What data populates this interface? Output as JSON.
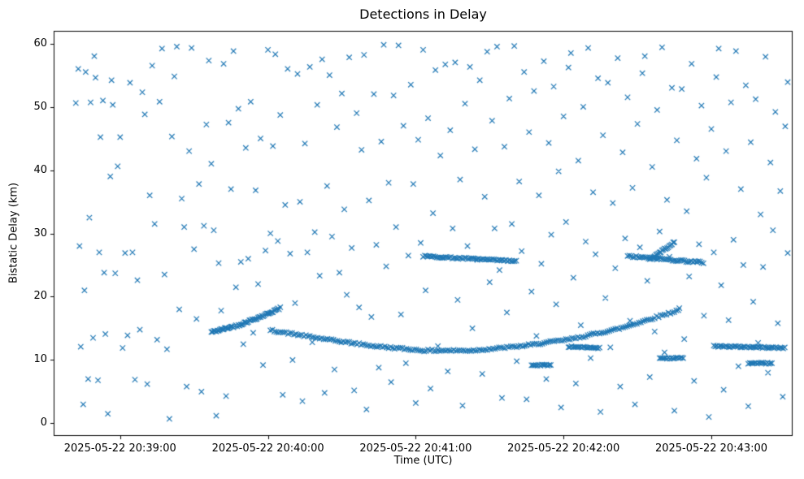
{
  "chart_data": {
    "type": "scatter",
    "title": "Detections in Delay",
    "xlabel": "Time (UTC)",
    "ylabel": "Bistatic Delay (km)",
    "marker": "x",
    "marker_color": "#1f77b4",
    "grid": false,
    "legend": null,
    "x_domain_seconds": [
      0,
      300
    ],
    "x_origin_label": "2025-05-22 20:38:33",
    "ylim": [
      -2,
      62
    ],
    "yticks": [
      0,
      10,
      20,
      30,
      40,
      50,
      60
    ],
    "x_ticks": [
      {
        "s": 27,
        "label": "2025-05-22 20:39:00"
      },
      {
        "s": 87,
        "label": "2025-05-22 20:40:00"
      },
      {
        "s": 147,
        "label": "2025-05-22 20:41:00"
      },
      {
        "s": 207,
        "label": "2025-05-22 20:42:00"
      },
      {
        "s": 267,
        "label": "2025-05-22 20:43:00"
      }
    ],
    "jitter_seed": 42,
    "noise_points": [
      [
        9,
        50.6
      ],
      [
        10,
        56
      ],
      [
        10.5,
        28
      ],
      [
        11,
        12.1
      ],
      [
        12,
        3
      ],
      [
        12.5,
        21
      ],
      [
        13,
        55.5
      ],
      [
        14,
        7
      ],
      [
        14.5,
        32.5
      ],
      [
        15,
        50.7
      ],
      [
        16,
        13.5
      ],
      [
        16.5,
        58
      ],
      [
        17,
        54.6
      ],
      [
        18,
        6.8
      ],
      [
        18.5,
        27
      ],
      [
        19,
        45.2
      ],
      [
        20,
        51
      ],
      [
        20.5,
        23.8
      ],
      [
        21,
        14.1
      ],
      [
        22,
        1.5
      ],
      [
        23,
        39
      ],
      [
        23.5,
        54.2
      ],
      [
        24,
        50.3
      ],
      [
        25,
        23.7
      ],
      [
        26,
        40.6
      ],
      [
        27,
        45.2
      ],
      [
        28,
        11.9
      ],
      [
        29,
        26.9
      ],
      [
        30,
        13.9
      ],
      [
        31,
        53.8
      ],
      [
        32,
        27
      ],
      [
        33,
        6.9
      ],
      [
        34,
        22.6
      ],
      [
        35,
        14.8
      ],
      [
        36,
        52.3
      ],
      [
        37,
        48.8
      ],
      [
        38,
        6.2
      ],
      [
        39,
        36
      ],
      [
        40,
        56.5
      ],
      [
        41,
        31.5
      ],
      [
        42,
        13.2
      ],
      [
        43,
        50.8
      ],
      [
        44,
        59.2
      ],
      [
        45,
        23.5
      ],
      [
        46,
        11.7
      ],
      [
        47,
        0.7
      ],
      [
        48,
        45.3
      ],
      [
        49,
        54.8
      ],
      [
        50,
        59.5
      ],
      [
        51,
        18
      ],
      [
        52,
        35.5
      ],
      [
        53,
        31
      ],
      [
        54,
        5.8
      ],
      [
        55,
        43
      ],
      [
        56,
        59.3
      ],
      [
        57,
        27.5
      ],
      [
        58,
        16.5
      ],
      [
        59,
        37.8
      ],
      [
        60,
        5
      ],
      [
        61,
        31.2
      ],
      [
        62,
        47.2
      ],
      [
        63,
        57.3
      ],
      [
        64,
        41
      ],
      [
        65,
        30.5
      ],
      [
        66,
        1.2
      ],
      [
        67,
        25.3
      ],
      [
        68,
        17.8
      ],
      [
        69,
        56.8
      ],
      [
        70,
        4.3
      ],
      [
        71,
        47.5
      ],
      [
        72,
        37
      ],
      [
        73,
        58.8
      ],
      [
        74,
        21.5
      ],
      [
        75,
        49.7
      ],
      [
        76,
        25.5
      ],
      [
        77,
        12.5
      ],
      [
        78,
        43.5
      ],
      [
        79,
        26
      ],
      [
        80,
        50.8
      ],
      [
        81,
        14.3
      ],
      [
        82,
        36.8
      ],
      [
        83,
        22
      ],
      [
        84,
        45
      ],
      [
        85,
        9.2
      ],
      [
        86,
        27.3
      ],
      [
        87,
        59
      ],
      [
        88,
        30
      ],
      [
        89,
        43.8
      ],
      [
        90,
        58.3
      ],
      [
        91,
        28.8
      ],
      [
        92,
        48.7
      ],
      [
        93,
        4.5
      ],
      [
        94,
        34.5
      ],
      [
        95,
        56
      ],
      [
        96,
        26.8
      ],
      [
        97,
        10
      ],
      [
        98,
        19
      ],
      [
        99,
        55.2
      ],
      [
        100,
        35
      ],
      [
        101,
        3.5
      ],
      [
        102,
        44.2
      ],
      [
        103,
        27
      ],
      [
        104,
        56.3
      ],
      [
        105,
        12.8
      ],
      [
        106,
        30.2
      ],
      [
        107,
        50.3
      ],
      [
        108,
        23.3
      ],
      [
        109,
        57.5
      ],
      [
        110,
        4.8
      ],
      [
        111,
        37.5
      ],
      [
        112,
        55
      ],
      [
        113,
        29.5
      ],
      [
        114,
        8.5
      ],
      [
        115,
        46.8
      ],
      [
        116,
        23.8
      ],
      [
        117,
        52.1
      ],
      [
        118,
        33.8
      ],
      [
        119,
        20.3
      ],
      [
        120,
        57.8
      ],
      [
        121,
        27.7
      ],
      [
        122,
        5.2
      ],
      [
        123,
        49
      ],
      [
        124,
        18.3
      ],
      [
        125,
        43.2
      ],
      [
        126,
        58.2
      ],
      [
        127,
        2.2
      ],
      [
        128,
        35.2
      ],
      [
        129,
        16.8
      ],
      [
        130,
        52
      ],
      [
        131,
        28.2
      ],
      [
        132,
        8.8
      ],
      [
        133,
        44.5
      ],
      [
        134,
        59.8
      ],
      [
        135,
        24.8
      ],
      [
        136,
        38
      ],
      [
        137,
        6.5
      ],
      [
        138,
        51.8
      ],
      [
        139,
        31
      ],
      [
        140,
        59.7
      ],
      [
        141,
        17.2
      ],
      [
        142,
        47
      ],
      [
        143,
        9.5
      ],
      [
        144,
        26.5
      ],
      [
        145,
        53.5
      ],
      [
        146,
        37.8
      ],
      [
        147,
        3.2
      ],
      [
        148,
        44.8
      ],
      [
        149,
        28.5
      ],
      [
        150,
        59
      ],
      [
        151,
        21
      ],
      [
        152,
        48.2
      ],
      [
        153,
        5.5
      ],
      [
        154,
        33.2
      ],
      [
        155,
        55.8
      ],
      [
        156,
        12.2
      ],
      [
        157,
        42.3
      ],
      [
        158,
        26.2
      ],
      [
        159,
        56.7
      ],
      [
        160,
        8.2
      ],
      [
        161,
        46.3
      ],
      [
        162,
        30.8
      ],
      [
        163,
        57
      ],
      [
        164,
        19.5
      ],
      [
        165,
        38.5
      ],
      [
        166,
        2.8
      ],
      [
        167,
        50.5
      ],
      [
        168,
        28
      ],
      [
        169,
        56.3
      ],
      [
        170,
        15
      ],
      [
        171,
        43.3
      ],
      [
        172,
        25.8
      ],
      [
        173,
        54.2
      ],
      [
        174,
        7.8
      ],
      [
        175,
        35.8
      ],
      [
        176,
        58.7
      ],
      [
        177,
        22.3
      ],
      [
        178,
        47.8
      ],
      [
        179,
        30.8
      ],
      [
        180,
        59.5
      ],
      [
        181,
        24.2
      ],
      [
        182,
        4
      ],
      [
        183,
        43.7
      ],
      [
        184,
        17.5
      ],
      [
        185,
        51.3
      ],
      [
        186,
        31.5
      ],
      [
        187,
        59.6
      ],
      [
        188,
        9.8
      ],
      [
        189,
        38.2
      ],
      [
        190,
        27.2
      ],
      [
        191,
        55.5
      ],
      [
        192,
        3.8
      ],
      [
        193,
        46
      ],
      [
        194,
        20.8
      ],
      [
        195,
        52.5
      ],
      [
        196,
        13.8
      ],
      [
        197,
        36
      ],
      [
        198,
        25.2
      ],
      [
        199,
        57.2
      ],
      [
        200,
        7
      ],
      [
        201,
        44.3
      ],
      [
        202,
        29.8
      ],
      [
        203,
        53.2
      ],
      [
        204,
        18.8
      ],
      [
        205,
        39.8
      ],
      [
        206,
        2.5
      ],
      [
        207,
        48.5
      ],
      [
        208,
        31.8
      ],
      [
        209,
        56.2
      ],
      [
        210,
        58.5
      ],
      [
        211,
        23
      ],
      [
        212,
        6.3
      ],
      [
        213,
        41.5
      ],
      [
        214,
        15.5
      ],
      [
        215,
        50
      ],
      [
        216,
        28.7
      ],
      [
        217,
        59.3
      ],
      [
        218,
        10.3
      ],
      [
        219,
        36.5
      ],
      [
        220,
        26.7
      ],
      [
        221,
        54.5
      ],
      [
        222,
        1.8
      ],
      [
        223,
        45.5
      ],
      [
        224,
        19.8
      ],
      [
        225,
        53.8
      ],
      [
        226,
        12
      ],
      [
        227,
        34.8
      ],
      [
        228,
        24.5
      ],
      [
        229,
        57.7
      ],
      [
        230,
        5.8
      ],
      [
        231,
        42.8
      ],
      [
        232,
        29.2
      ],
      [
        233,
        51.5
      ],
      [
        234,
        16.2
      ],
      [
        235,
        37.2
      ],
      [
        236,
        3
      ],
      [
        237,
        47.3
      ],
      [
        238,
        27.8
      ],
      [
        239,
        55.3
      ],
      [
        240,
        58
      ],
      [
        241,
        22.5
      ],
      [
        242,
        7.3
      ],
      [
        243,
        40.5
      ],
      [
        244,
        14.5
      ],
      [
        245,
        49.5
      ],
      [
        246,
        30.3
      ],
      [
        247,
        59.4
      ],
      [
        248,
        11.2
      ],
      [
        249,
        35.3
      ],
      [
        250,
        26.3
      ],
      [
        251,
        53
      ],
      [
        252,
        2
      ],
      [
        253,
        44.7
      ],
      [
        254,
        18.2
      ],
      [
        255,
        52.8
      ],
      [
        256,
        13.3
      ],
      [
        257,
        33.5
      ],
      [
        258,
        23.2
      ],
      [
        259,
        56.8
      ],
      [
        260,
        6.7
      ],
      [
        261,
        41.8
      ],
      [
        262,
        28.3
      ],
      [
        263,
        50.2
      ],
      [
        264,
        17
      ],
      [
        265,
        38.8
      ],
      [
        266,
        1
      ],
      [
        267,
        46.5
      ],
      [
        268,
        27
      ],
      [
        269,
        54.7
      ],
      [
        270,
        59.2
      ],
      [
        271,
        21.8
      ],
      [
        272,
        5.3
      ],
      [
        273,
        43
      ],
      [
        274,
        16.3
      ],
      [
        275,
        50.7
      ],
      [
        276,
        29
      ],
      [
        277,
        58.8
      ],
      [
        278,
        9
      ],
      [
        279,
        37
      ],
      [
        280,
        25
      ],
      [
        281,
        53.4
      ],
      [
        282,
        2.7
      ],
      [
        283,
        44.4
      ],
      [
        284,
        19.2
      ],
      [
        285,
        51.2
      ],
      [
        286,
        12.7
      ],
      [
        287,
        33
      ],
      [
        288,
        24.7
      ],
      [
        289,
        57.9
      ],
      [
        290,
        8
      ],
      [
        291,
        41.2
      ],
      [
        292,
        30.5
      ],
      [
        293,
        49.2
      ],
      [
        294,
        15.8
      ],
      [
        295,
        36.7
      ],
      [
        296,
        4.2
      ],
      [
        297,
        46.9
      ],
      [
        298,
        26.9
      ],
      [
        298,
        53.9
      ]
    ],
    "tracks": [
      {
        "name": "ascending-track-early",
        "control_points": [
          [
            64,
            14.4
          ],
          [
            75,
            15.5
          ],
          [
            85,
            17.0
          ],
          [
            92,
            18.2
          ]
        ],
        "spacing_s": 0.5,
        "jitter": 0.15
      },
      {
        "name": "u-shaped-track",
        "control_points": [
          [
            88,
            14.7
          ],
          [
            110,
            13.3
          ],
          [
            130,
            12.2
          ],
          [
            150,
            11.5
          ],
          [
            170,
            11.5
          ],
          [
            190,
            12.2
          ],
          [
            210,
            13.3
          ],
          [
            230,
            15.0
          ],
          [
            254,
            17.9
          ]
        ],
        "spacing_s": 0.8,
        "jitter": 0.15
      },
      {
        "name": "flat-track-26-mid",
        "control_points": [
          [
            150,
            26.4
          ],
          [
            188,
            25.6
          ]
        ],
        "spacing_s": 0.7,
        "jitter": 0.12
      },
      {
        "name": "flat-track-26-right",
        "control_points": [
          [
            233,
            26.4
          ],
          [
            264,
            25.4
          ]
        ],
        "spacing_s": 0.7,
        "jitter": 0.15
      },
      {
        "name": "rising-arc-28",
        "control_points": [
          [
            242,
            25.9
          ],
          [
            252,
            28.6
          ]
        ],
        "spacing_s": 0.5,
        "jitter": 0.12
      },
      {
        "name": "flat-track-12-right",
        "control_points": [
          [
            268,
            12.2
          ],
          [
            297,
            11.9
          ]
        ],
        "spacing_s": 0.6,
        "jitter": 0.12
      },
      {
        "name": "flat-seg-12-mid",
        "control_points": [
          [
            209,
            12.1
          ],
          [
            222,
            11.9
          ]
        ],
        "spacing_s": 0.6,
        "jitter": 0.1
      },
      {
        "name": "flat-seg-9-mid",
        "control_points": [
          [
            194,
            9.2
          ],
          [
            202,
            9.2
          ]
        ],
        "spacing_s": 0.6,
        "jitter": 0.1
      },
      {
        "name": "flat-seg-10-right",
        "control_points": [
          [
            246,
            10.3
          ],
          [
            256,
            10.3
          ]
        ],
        "spacing_s": 0.6,
        "jitter": 0.1
      },
      {
        "name": "flat-seg-9-far-right",
        "control_points": [
          [
            282,
            9.5
          ],
          [
            292,
            9.5
          ]
        ],
        "spacing_s": 0.6,
        "jitter": 0.1
      }
    ]
  }
}
